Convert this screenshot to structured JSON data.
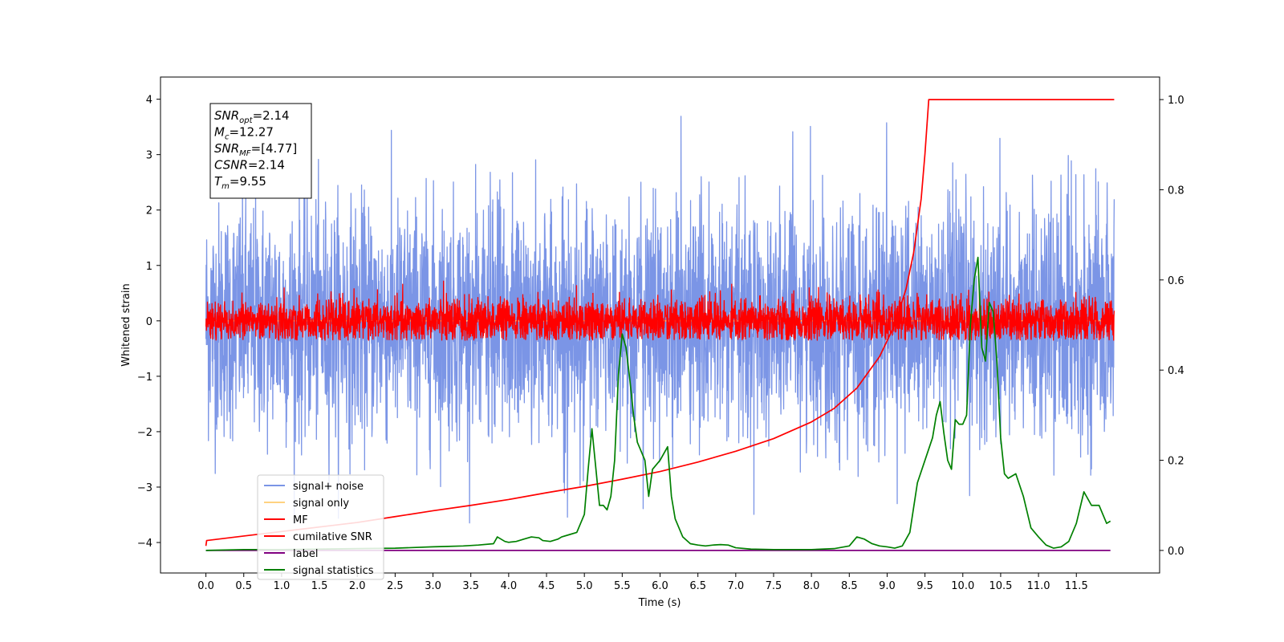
{
  "chart_data": {
    "type": "line",
    "title": "",
    "xlabel": "Time (s)",
    "ylabel": "Whitened strain",
    "xlim": [
      -0.6,
      12.6
    ],
    "ylim": [
      -4.55,
      4.4
    ],
    "ylim_right": [
      -0.05,
      1.05
    ],
    "x_ticks": [
      0.0,
      0.5,
      1.0,
      1.5,
      2.0,
      2.5,
      3.0,
      3.5,
      4.0,
      4.5,
      5.0,
      5.5,
      6.0,
      6.5,
      7.0,
      7.5,
      8.0,
      8.5,
      9.0,
      9.5,
      10.0,
      10.5,
      11.0,
      11.5
    ],
    "x_tick_labels": [
      "0.0",
      "0.5",
      "1.0",
      "1.5",
      "2.0",
      "2.5",
      "3.0",
      "3.5",
      "4.0",
      "4.5",
      "5.0",
      "5.5",
      "6.0",
      "6.5",
      "7.0",
      "7.5",
      "8.0",
      "8.5",
      "9.0",
      "9.5",
      "10.0",
      "10.5",
      "11.0",
      "11.5"
    ],
    "y_ticks": [
      -4,
      -3,
      -2,
      -1,
      0,
      1,
      2,
      3,
      4
    ],
    "y_tick_labels": [
      "−4",
      "−3",
      "−2",
      "−1",
      "0",
      "1",
      "2",
      "3",
      "4"
    ],
    "y_right_ticks": [
      0.0,
      0.2,
      0.4,
      0.6,
      0.8,
      1.0
    ],
    "y_right_tick_labels": [
      "0.0",
      "0.2",
      "0.4",
      "0.6",
      "0.8",
      "1.0"
    ],
    "grid": false,
    "legend_position": "lower-left",
    "annotation": {
      "lines": [
        {
          "main": "SNR",
          "sub": "opt",
          "value": "=2.14"
        },
        {
          "main": "M",
          "sub": "c",
          "value": "=12.27"
        },
        {
          "main": "SNR",
          "sub": "MF",
          "value": "=[4.77]"
        },
        {
          "main": "CSNR",
          "sub": "",
          "value": "=2.14"
        },
        {
          "main": "T",
          "sub": "m",
          "value": "=9.55"
        }
      ]
    },
    "series": [
      {
        "name": "signal+ noise",
        "color": "#7b95e6",
        "axis": "left",
        "kind": "noise",
        "x_range": [
          0.0,
          12.0
        ],
        "std": 1.05,
        "max": 4.0,
        "min": -4.0
      },
      {
        "name": "signal only",
        "color": "#ffd280",
        "axis": "left",
        "kind": "flat",
        "x": [
          0.0,
          12.0
        ],
        "y": [
          0.0,
          0.0
        ]
      },
      {
        "name": "MF",
        "color": "#ff0000",
        "axis": "left",
        "kind": "noise",
        "x_range": [
          0.0,
          12.0
        ],
        "std": 0.2,
        "max": 1.0,
        "min": -0.35
      },
      {
        "name": "cumilative SNR",
        "color": "#ff0000",
        "axis": "right",
        "kind": "line",
        "x": [
          0.0,
          0.01,
          0.5,
          1.0,
          1.5,
          2.0,
          2.5,
          3.0,
          3.5,
          4.0,
          4.5,
          5.0,
          5.5,
          6.0,
          6.5,
          7.0,
          7.5,
          8.0,
          8.3,
          8.6,
          8.9,
          9.1,
          9.25,
          9.35,
          9.45,
          9.5,
          9.55,
          12.0
        ],
        "y": [
          0.01,
          0.022,
          0.032,
          0.042,
          0.052,
          0.062,
          0.075,
          0.088,
          0.1,
          0.113,
          0.128,
          0.142,
          0.158,
          0.175,
          0.196,
          0.22,
          0.248,
          0.285,
          0.315,
          0.36,
          0.43,
          0.5,
          0.58,
          0.66,
          0.78,
          0.88,
          1.0,
          1.0
        ]
      },
      {
        "name": "label",
        "color": "#800080",
        "axis": "right",
        "kind": "line",
        "x": [
          0.0,
          11.95
        ],
        "y": [
          0.0,
          0.0
        ]
      },
      {
        "name": "signal statistics",
        "color": "#008000",
        "axis": "right",
        "kind": "line",
        "x": [
          0.0,
          0.5,
          1.0,
          1.5,
          2.0,
          2.5,
          3.0,
          3.2,
          3.4,
          3.6,
          3.8,
          3.85,
          3.95,
          4.0,
          4.1,
          4.2,
          4.3,
          4.4,
          4.45,
          4.55,
          4.65,
          4.7,
          4.8,
          4.9,
          5.0,
          5.05,
          5.1,
          5.2,
          5.25,
          5.3,
          5.35,
          5.4,
          5.45,
          5.5,
          5.55,
          5.6,
          5.65,
          5.7,
          5.75,
          5.8,
          5.85,
          5.9,
          6.0,
          6.1,
          6.15,
          6.2,
          6.3,
          6.4,
          6.5,
          6.6,
          6.7,
          6.8,
          6.9,
          7.0,
          7.2,
          7.5,
          7.8,
          8.0,
          8.3,
          8.5,
          8.6,
          8.7,
          8.8,
          8.9,
          9.0,
          9.1,
          9.2,
          9.3,
          9.4,
          9.5,
          9.6,
          9.65,
          9.7,
          9.75,
          9.8,
          9.85,
          9.9,
          9.95,
          10.0,
          10.05,
          10.1,
          10.15,
          10.2,
          10.25,
          10.3,
          10.35,
          10.4,
          10.45,
          10.5,
          10.55,
          10.6,
          10.7,
          10.8,
          10.9,
          11.0,
          11.1,
          11.2,
          11.3,
          11.4,
          11.5,
          11.6,
          11.7,
          11.8,
          11.9,
          11.95
        ],
        "y": [
          0.0,
          0.002,
          0.002,
          0.003,
          0.004,
          0.005,
          0.008,
          0.009,
          0.01,
          0.012,
          0.015,
          0.03,
          0.02,
          0.018,
          0.02,
          0.025,
          0.03,
          0.028,
          0.022,
          0.02,
          0.025,
          0.03,
          0.035,
          0.04,
          0.08,
          0.18,
          0.27,
          0.1,
          0.1,
          0.09,
          0.12,
          0.2,
          0.39,
          0.48,
          0.45,
          0.38,
          0.3,
          0.24,
          0.22,
          0.2,
          0.12,
          0.18,
          0.2,
          0.23,
          0.12,
          0.07,
          0.03,
          0.015,
          0.012,
          0.01,
          0.012,
          0.013,
          0.012,
          0.006,
          0.003,
          0.002,
          0.002,
          0.002,
          0.004,
          0.01,
          0.03,
          0.025,
          0.015,
          0.01,
          0.008,
          0.005,
          0.01,
          0.04,
          0.15,
          0.2,
          0.25,
          0.3,
          0.33,
          0.26,
          0.2,
          0.18,
          0.29,
          0.28,
          0.28,
          0.3,
          0.5,
          0.6,
          0.65,
          0.45,
          0.42,
          0.55,
          0.53,
          0.42,
          0.25,
          0.17,
          0.16,
          0.17,
          0.12,
          0.05,
          0.03,
          0.012,
          0.005,
          0.008,
          0.02,
          0.06,
          0.13,
          0.1,
          0.1,
          0.06,
          0.065
        ]
      }
    ]
  }
}
